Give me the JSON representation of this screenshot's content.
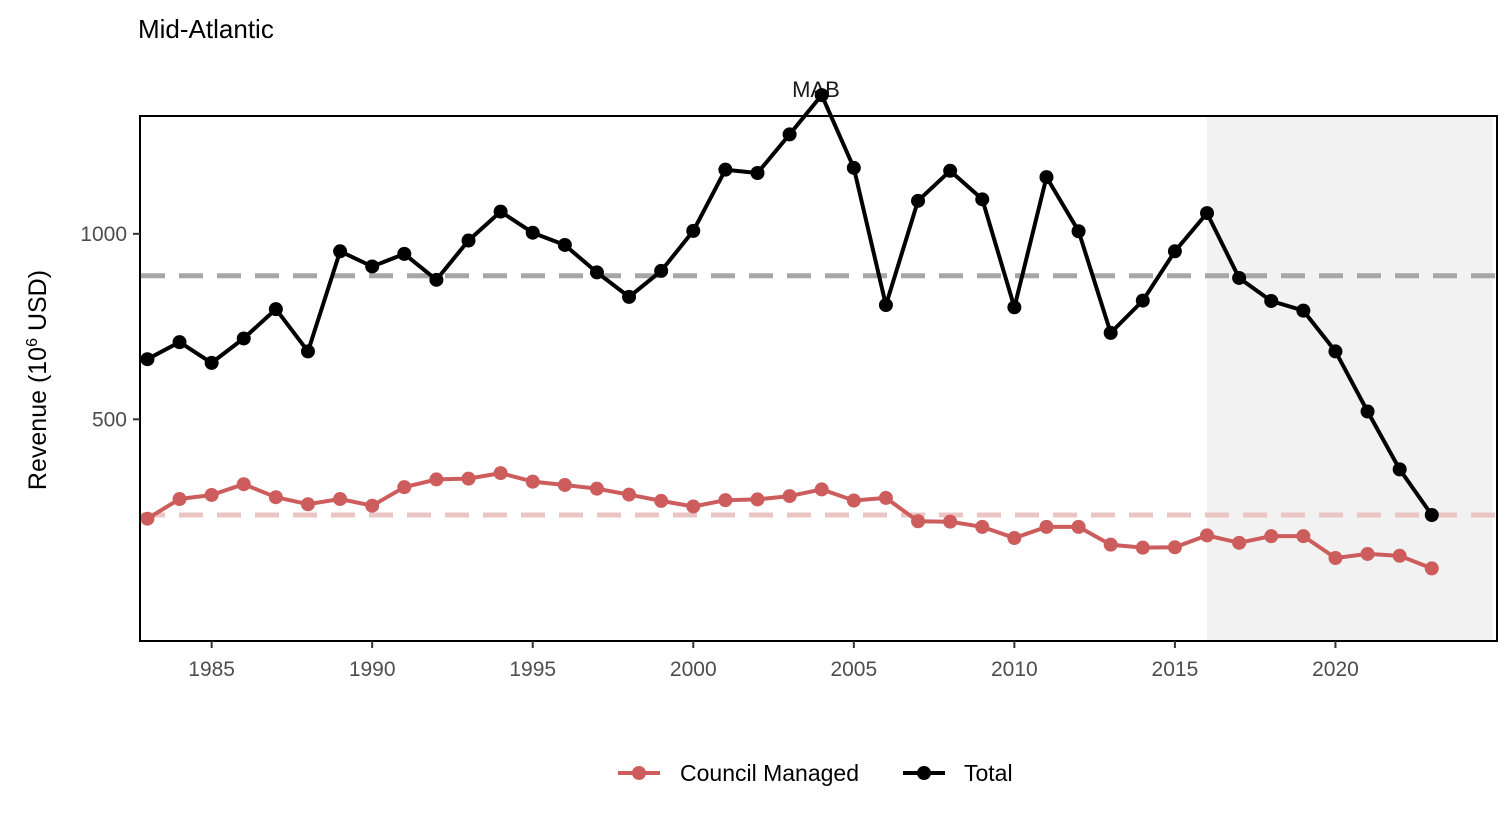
{
  "chart_data": {
    "type": "line",
    "title": "Mid-Atlantic",
    "panel_label": "MAB",
    "ylabel": "Revenue (10",
    "ylabel_superscript": "6",
    "ylabel_suffix": " USD)",
    "xlabel": "",
    "xlim": [
      1982.8,
      2025
    ],
    "ylim": [
      -95,
      1315
    ],
    "x_ticks": [
      1985,
      1990,
      1995,
      2000,
      2005,
      2010,
      2015,
      2020
    ],
    "x_tick_labels": [
      "1985",
      "1990",
      "1995",
      "2000",
      "2005",
      "2010",
      "2015",
      "2020"
    ],
    "y_ticks": [
      500,
      1000
    ],
    "y_tick_labels": [
      "500",
      "1000"
    ],
    "grid": false,
    "legend_position": "bottom",
    "shaded_region": {
      "x_start": 2016,
      "x_end": 2024.9,
      "color": "#f2f2f2"
    },
    "x": [
      1983,
      1984,
      1985,
      1986,
      1987,
      1988,
      1989,
      1990,
      1991,
      1992,
      1993,
      1994,
      1995,
      1996,
      1997,
      1998,
      1999,
      2000,
      2001,
      2002,
      2003,
      2004,
      2005,
      2006,
      2007,
      2008,
      2009,
      2010,
      2011,
      2012,
      2013,
      2014,
      2015,
      2016,
      2017,
      2018,
      2019,
      2020,
      2021,
      2022,
      2023
    ],
    "series": [
      {
        "name": "Council Managed",
        "color": "#cd5c5c",
        "mean": 242,
        "mean_color": "#ebc4c4",
        "values": [
          232,
          285,
          296,
          325,
          290,
          271,
          285,
          267,
          317,
          338,
          340,
          355,
          332,
          323,
          313,
          297,
          280,
          265,
          282,
          284,
          293,
          311,
          281,
          288,
          225,
          224,
          210,
          180,
          210,
          210,
          162,
          154,
          155,
          187,
          167,
          185,
          185,
          126,
          137,
          132,
          98
        ]
      },
      {
        "name": "Total",
        "color": "#000000",
        "mean": 887,
        "mean_color": "#a6a6a6",
        "values": [
          662,
          708,
          652,
          718,
          797,
          683,
          953,
          912,
          946,
          876,
          982,
          1060,
          1003,
          970,
          896,
          830,
          900,
          1008,
          1173,
          1164,
          1268,
          1374,
          1178,
          808,
          1089,
          1170,
          1093,
          802,
          1153,
          1007,
          733,
          820,
          953,
          1056,
          881,
          819,
          793,
          683,
          521,
          365,
          242
        ]
      }
    ]
  }
}
